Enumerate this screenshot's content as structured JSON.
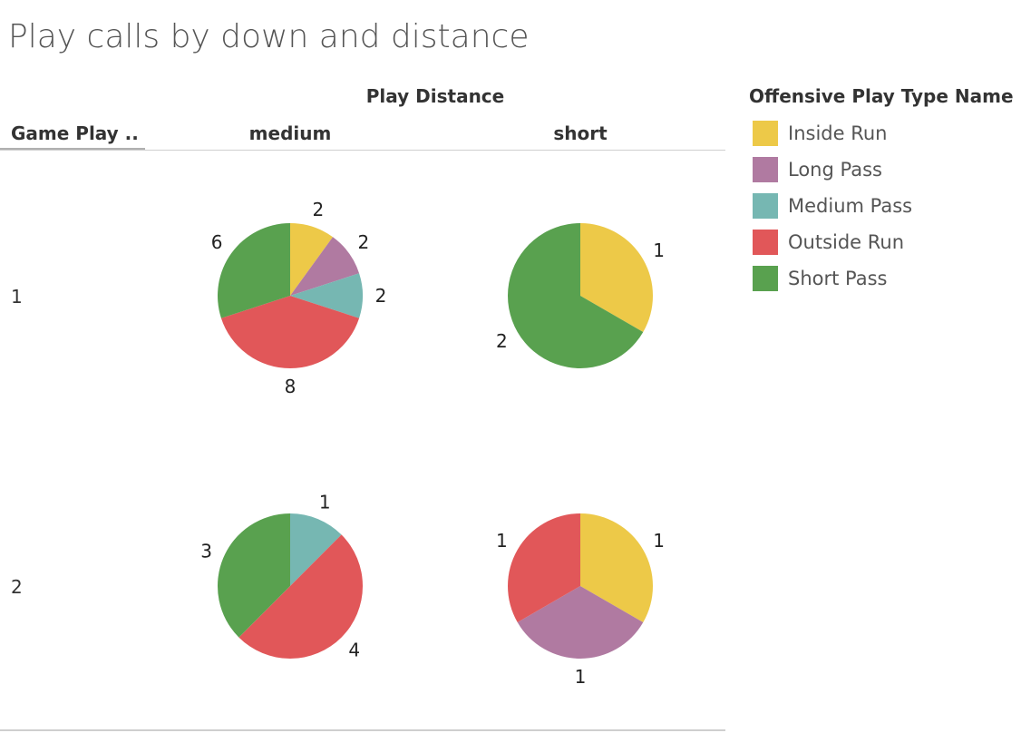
{
  "title": "Play calls by down and distance",
  "column_group_header": "Play Distance",
  "row_dimension_header": "Game Play ..",
  "legend": {
    "title": "Offensive Play Type Name",
    "items": [
      {
        "label": "Inside Run",
        "color": "#edc948"
      },
      {
        "label": "Long Pass",
        "color": "#b07aa1"
      },
      {
        "label": "Medium Pass",
        "color": "#76b7b2"
      },
      {
        "label": "Outside Run",
        "color": "#e15759"
      },
      {
        "label": "Short Pass",
        "color": "#59a14f"
      }
    ]
  },
  "chart_data": {
    "type": "pie",
    "columns": [
      "medium",
      "short"
    ],
    "rows": [
      "1",
      "2"
    ],
    "categories": [
      "Inside Run",
      "Long Pass",
      "Medium Pass",
      "Outside Run",
      "Short Pass"
    ],
    "pies": [
      {
        "row": "1",
        "column": "medium",
        "slices": [
          {
            "category": "Inside Run",
            "value": 2
          },
          {
            "category": "Long Pass",
            "value": 2
          },
          {
            "category": "Medium Pass",
            "value": 2
          },
          {
            "category": "Outside Run",
            "value": 8
          },
          {
            "category": "Short Pass",
            "value": 6
          }
        ]
      },
      {
        "row": "1",
        "column": "short",
        "slices": [
          {
            "category": "Inside Run",
            "value": 1
          },
          {
            "category": "Short Pass",
            "value": 2
          }
        ]
      },
      {
        "row": "2",
        "column": "medium",
        "slices": [
          {
            "category": "Medium Pass",
            "value": 1
          },
          {
            "category": "Outside Run",
            "value": 4
          },
          {
            "category": "Short Pass",
            "value": 3
          }
        ]
      },
      {
        "row": "2",
        "column": "short",
        "slices": [
          {
            "category": "Inside Run",
            "value": 1
          },
          {
            "category": "Long Pass",
            "value": 1
          },
          {
            "category": "Outside Run",
            "value": 1
          }
        ]
      }
    ]
  }
}
